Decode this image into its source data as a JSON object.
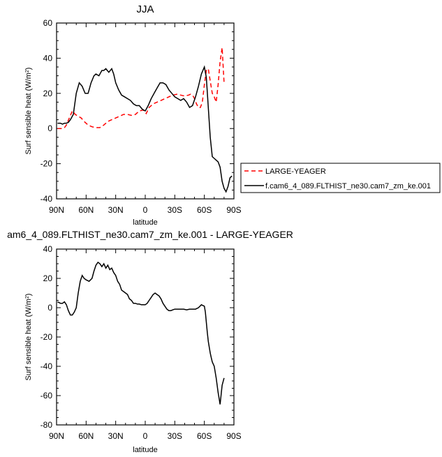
{
  "chart_data": [
    {
      "type": "line",
      "title": "JJA",
      "xlabel": "latitude",
      "ylabel": "Surf sensible heat (W/m",
      "ylabel_sup": "2",
      "ylabel_close": ")",
      "xlim": [
        90,
        -90
      ],
      "ylim": [
        -40,
        60
      ],
      "xticks": [
        90,
        60,
        30,
        0,
        -30,
        -60,
        -90
      ],
      "xtick_labels": [
        "90N",
        "60N",
        "30N",
        "0",
        "30S",
        "60S",
        "90S"
      ],
      "yticks": [
        -40,
        -20,
        0,
        20,
        40,
        60
      ],
      "ytick_labels": [
        "-40",
        "-20",
        "0",
        "20",
        "40",
        "60"
      ],
      "legend": "right",
      "series": [
        {
          "name": "LARGE-YEAGER",
          "color": "#ff0000",
          "dash": "dashed",
          "x": [
            89,
            86,
            84,
            82,
            80,
            77,
            74,
            71,
            68,
            65,
            62,
            58,
            54,
            50,
            46,
            42,
            38,
            34,
            30,
            26,
            22,
            18,
            14,
            10,
            6,
            2,
            -1,
            -4,
            -8,
            -12,
            -16,
            -20,
            -24,
            -28,
            -32,
            -36,
            -40,
            -44,
            -46,
            -48,
            -50,
            -52,
            -54,
            -56,
            -58,
            -60,
            -62,
            -64,
            -66,
            -68,
            -70,
            -72,
            -74,
            -76,
            -78,
            -80
          ],
          "y": [
            0,
            0,
            0,
            0.5,
            2,
            6,
            10,
            8,
            7,
            6,
            4,
            2,
            1,
            0.5,
            0.5,
            2,
            4,
            5,
            6,
            7,
            8,
            8,
            7.5,
            8,
            10,
            10.5,
            8.5,
            12,
            14,
            15,
            16,
            17,
            18,
            19,
            19.5,
            19,
            18.5,
            19,
            19.5,
            19,
            17,
            14,
            12,
            12,
            15,
            25,
            33,
            34,
            27,
            20,
            18,
            15,
            25,
            38,
            46,
            26
          ]
        },
        {
          "name": "f.cam6_4_089.FLTHIST_ne30.cam7_zm_ke.001",
          "color": "#000000",
          "dash": "solid",
          "x": [
            89,
            86,
            84,
            82,
            80,
            78,
            76,
            73,
            70,
            67,
            64,
            61,
            58,
            55,
            52,
            50,
            47,
            44,
            42,
            40,
            37,
            34,
            32,
            30,
            27,
            24,
            21,
            18,
            15,
            12,
            9,
            6,
            3,
            0,
            -3,
            -6,
            -9,
            -12,
            -15,
            -18,
            -21,
            -24,
            -27,
            -30,
            -33,
            -36,
            -39,
            -42,
            -45,
            -48,
            -51,
            -54,
            -57,
            -60,
            -62,
            -64,
            -66,
            -68,
            -70,
            -72,
            -74,
            -76,
            -78,
            -80,
            -82,
            -84,
            -86,
            -88
          ],
          "y": [
            3,
            3,
            2.5,
            3,
            3,
            3.5,
            5,
            8,
            20,
            26,
            24,
            20,
            20,
            26,
            30,
            31,
            30,
            33,
            33,
            34,
            32,
            34,
            31,
            26,
            22,
            19,
            18,
            17,
            16,
            14,
            13,
            13,
            11,
            10,
            13,
            17,
            20,
            23,
            26,
            26,
            25,
            22,
            20,
            18,
            17,
            16,
            17,
            15,
            12,
            13,
            18,
            24,
            31,
            35,
            29,
            12,
            -5,
            -16,
            -17,
            -18,
            -19,
            -22,
            -30,
            -34,
            -36,
            -33,
            -28,
            -27
          ]
        }
      ]
    },
    {
      "type": "line",
      "title": "am6_4_089.FLTHIST_ne30.cam7_zm_ke.001 - LARGE-YEAGER",
      "xlabel": "latitude",
      "ylabel": "Surf sensible heat (W/m",
      "ylabel_sup": "2",
      "ylabel_close": ")",
      "xlim": [
        90,
        -90
      ],
      "ylim": [
        -80,
        40
      ],
      "xticks": [
        90,
        60,
        30,
        0,
        -30,
        -60,
        -90
      ],
      "xtick_labels": [
        "90N",
        "60N",
        "30N",
        "0",
        "30S",
        "60S",
        "90S"
      ],
      "yticks": [
        -80,
        -60,
        -40,
        -20,
        0,
        20,
        40
      ],
      "ytick_labels": [
        "-80",
        "-60",
        "-40",
        "-20",
        "0",
        "20",
        "40"
      ],
      "series": [
        {
          "color": "#000000",
          "dash": "solid",
          "x": [
            89,
            86,
            84,
            82,
            80,
            78,
            76,
            74,
            72,
            70,
            68,
            66,
            64,
            62,
            60,
            57,
            54,
            52,
            50,
            48,
            46,
            44,
            42,
            40,
            38,
            36,
            34,
            32,
            30,
            28,
            26,
            24,
            22,
            20,
            18,
            16,
            14,
            12,
            10,
            8,
            6,
            4,
            2,
            0,
            -2,
            -4,
            -6,
            -8,
            -10,
            -12,
            -14,
            -16,
            -18,
            -20,
            -22,
            -24,
            -26,
            -28,
            -30,
            -33,
            -36,
            -39,
            -42,
            -45,
            -48,
            -51,
            -54,
            -57,
            -60,
            -61,
            -62,
            -63,
            -64,
            -65,
            -66,
            -67,
            -68,
            -70,
            -72,
            -74,
            -76,
            -78,
            -80
          ],
          "y": [
            4,
            3,
            3,
            4,
            2,
            -2,
            -5,
            -5,
            -3,
            0,
            10,
            18,
            22,
            20,
            19,
            18,
            20,
            25,
            29,
            31,
            30,
            28,
            30,
            27,
            29,
            26,
            27,
            24,
            22,
            18,
            16,
            12,
            11,
            10,
            9,
            6,
            5,
            3,
            3,
            2.5,
            2.5,
            2,
            2,
            2,
            3,
            5,
            7,
            9,
            10,
            9,
            8,
            6,
            3,
            1,
            -1,
            -2,
            -2,
            -1.5,
            -1,
            -1,
            -1,
            -1,
            -1.5,
            -1,
            -1,
            -1,
            0,
            2,
            1,
            -3,
            -10,
            -17,
            -23,
            -27,
            -31,
            -34,
            -37,
            -40,
            -48,
            -58,
            -66,
            -53,
            -48
          ]
        }
      ]
    }
  ]
}
